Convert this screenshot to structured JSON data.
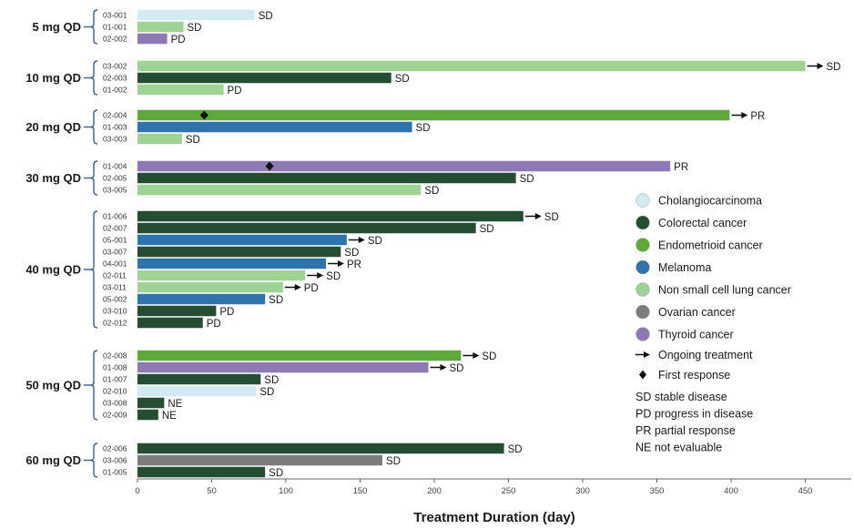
{
  "chart_data": {
    "type": "bar",
    "orientation": "horizontal",
    "xlabel": "Treatment Duration (day)",
    "xlim": [
      0,
      470
    ],
    "xticks": [
      0,
      50,
      100,
      150,
      200,
      250,
      300,
      350,
      400,
      450
    ],
    "groups": [
      {
        "label": "5 mg QD",
        "patients": [
          {
            "id": "03-001",
            "days": 79,
            "cancer": "Cholangiocarcinoma",
            "response": "SD",
            "ongoing": false
          },
          {
            "id": "01-001",
            "days": 31,
            "cancer": "Non small cell lung cancer",
            "response": "SD",
            "ongoing": false
          },
          {
            "id": "02-002",
            "days": 20,
            "cancer": "Thyroid cancer",
            "response": "PD",
            "ongoing": false
          }
        ]
      },
      {
        "label": "10 mg QD",
        "patients": [
          {
            "id": "03-002",
            "days": 450,
            "cancer": "Non small cell lung cancer",
            "response": "SD",
            "ongoing": true
          },
          {
            "id": "02-003",
            "days": 171,
            "cancer": "Colorectal cancer",
            "response": "SD",
            "ongoing": false
          },
          {
            "id": "01-002",
            "days": 58,
            "cancer": "Non small cell lung cancer",
            "response": "PD",
            "ongoing": false
          }
        ]
      },
      {
        "label": "20 mg QD",
        "patients": [
          {
            "id": "02-004",
            "days": 399,
            "cancer": "Endometrioid cancer",
            "response": "PR",
            "ongoing": true,
            "first_response": 45
          },
          {
            "id": "01-003",
            "days": 185,
            "cancer": "Melanoma",
            "response": "SD",
            "ongoing": false
          },
          {
            "id": "03-003",
            "days": 30,
            "cancer": "Non small cell lung cancer",
            "response": "SD",
            "ongoing": false
          }
        ]
      },
      {
        "label": "30 mg QD",
        "patients": [
          {
            "id": "01-004",
            "days": 359,
            "cancer": "Thyroid cancer",
            "response": "PR",
            "ongoing": false,
            "first_response": 89
          },
          {
            "id": "02-005",
            "days": 255,
            "cancer": "Colorectal cancer",
            "response": "SD",
            "ongoing": false
          },
          {
            "id": "03-005",
            "days": 191,
            "cancer": "Non small cell lung cancer",
            "response": "SD",
            "ongoing": false
          }
        ]
      },
      {
        "label": "40 mg QD",
        "patients": [
          {
            "id": "01-006",
            "days": 260,
            "cancer": "Colorectal cancer",
            "response": "SD",
            "ongoing": true
          },
          {
            "id": "02-007",
            "days": 228,
            "cancer": "Colorectal cancer",
            "response": "SD",
            "ongoing": false
          },
          {
            "id": "05-001",
            "days": 141,
            "cancer": "Melanoma",
            "response": "SD",
            "ongoing": true
          },
          {
            "id": "03-007",
            "days": 137,
            "cancer": "Colorectal cancer",
            "response": "SD",
            "ongoing": false
          },
          {
            "id": "04-001",
            "days": 127,
            "cancer": "Melanoma",
            "response": "PR",
            "ongoing": true
          },
          {
            "id": "02-011",
            "days": 113,
            "cancer": "Non small cell lung cancer",
            "response": "SD",
            "ongoing": true
          },
          {
            "id": "03-011",
            "days": 98,
            "cancer": "Non small cell lung cancer",
            "response": "PD",
            "ongoing": true
          },
          {
            "id": "05-002",
            "days": 86,
            "cancer": "Melanoma",
            "response": "SD",
            "ongoing": false
          },
          {
            "id": "03-010",
            "days": 53,
            "cancer": "Colorectal cancer",
            "response": "PD",
            "ongoing": false
          },
          {
            "id": "02-012",
            "days": 44,
            "cancer": "Colorectal cancer",
            "response": "PD",
            "ongoing": false
          }
        ]
      },
      {
        "label": "50 mg QD",
        "patients": [
          {
            "id": "02-008",
            "days": 218,
            "cancer": "Endometrioid cancer",
            "response": "SD",
            "ongoing": true
          },
          {
            "id": "01-008",
            "days": 196,
            "cancer": "Thyroid cancer",
            "response": "SD",
            "ongoing": true
          },
          {
            "id": "01-007",
            "days": 83,
            "cancer": "Colorectal cancer",
            "response": "SD",
            "ongoing": false
          },
          {
            "id": "02-010",
            "days": 80,
            "cancer": "Cholangiocarcinoma",
            "response": "SD",
            "ongoing": false
          },
          {
            "id": "03-008",
            "days": 18,
            "cancer": "Colorectal cancer",
            "response": "NE",
            "ongoing": false
          },
          {
            "id": "02-009",
            "days": 14,
            "cancer": "Colorectal cancer",
            "response": "NE",
            "ongoing": false
          }
        ]
      },
      {
        "label": "60 mg QD",
        "patients": [
          {
            "id": "02-006",
            "days": 247,
            "cancer": "Colorectal cancer",
            "response": "SD",
            "ongoing": false
          },
          {
            "id": "03-006",
            "days": 165,
            "cancer": "Ovarian cancer",
            "response": "SD",
            "ongoing": false
          },
          {
            "id": "01-005",
            "days": 86,
            "cancer": "Colorectal cancer",
            "response": "SD",
            "ongoing": false
          }
        ]
      }
    ],
    "legend": {
      "placement": "right",
      "cancers": [
        {
          "name": "Cholangiocarcinoma",
          "color": "#d3eaf2"
        },
        {
          "name": "Colorectal cancer",
          "color": "#254d32"
        },
        {
          "name": "Endometrioid cancer",
          "color": "#5fa83a"
        },
        {
          "name": "Melanoma",
          "color": "#2f73ad"
        },
        {
          "name": "Non small cell lung cancer",
          "color": "#9ed394"
        },
        {
          "name": "Ovarian cancer",
          "color": "#7c7c7c"
        },
        {
          "name": "Thyroid cancer",
          "color": "#8e79b4"
        }
      ],
      "markers": [
        {
          "icon": "arrow-right-icon",
          "label": "Ongoing treatment"
        },
        {
          "icon": "diamond-icon",
          "label": "First response"
        }
      ],
      "abbreviations": [
        "SD stable disease",
        "PD progress in disease",
        "PR partial response",
        "NE not evaluable"
      ]
    }
  }
}
